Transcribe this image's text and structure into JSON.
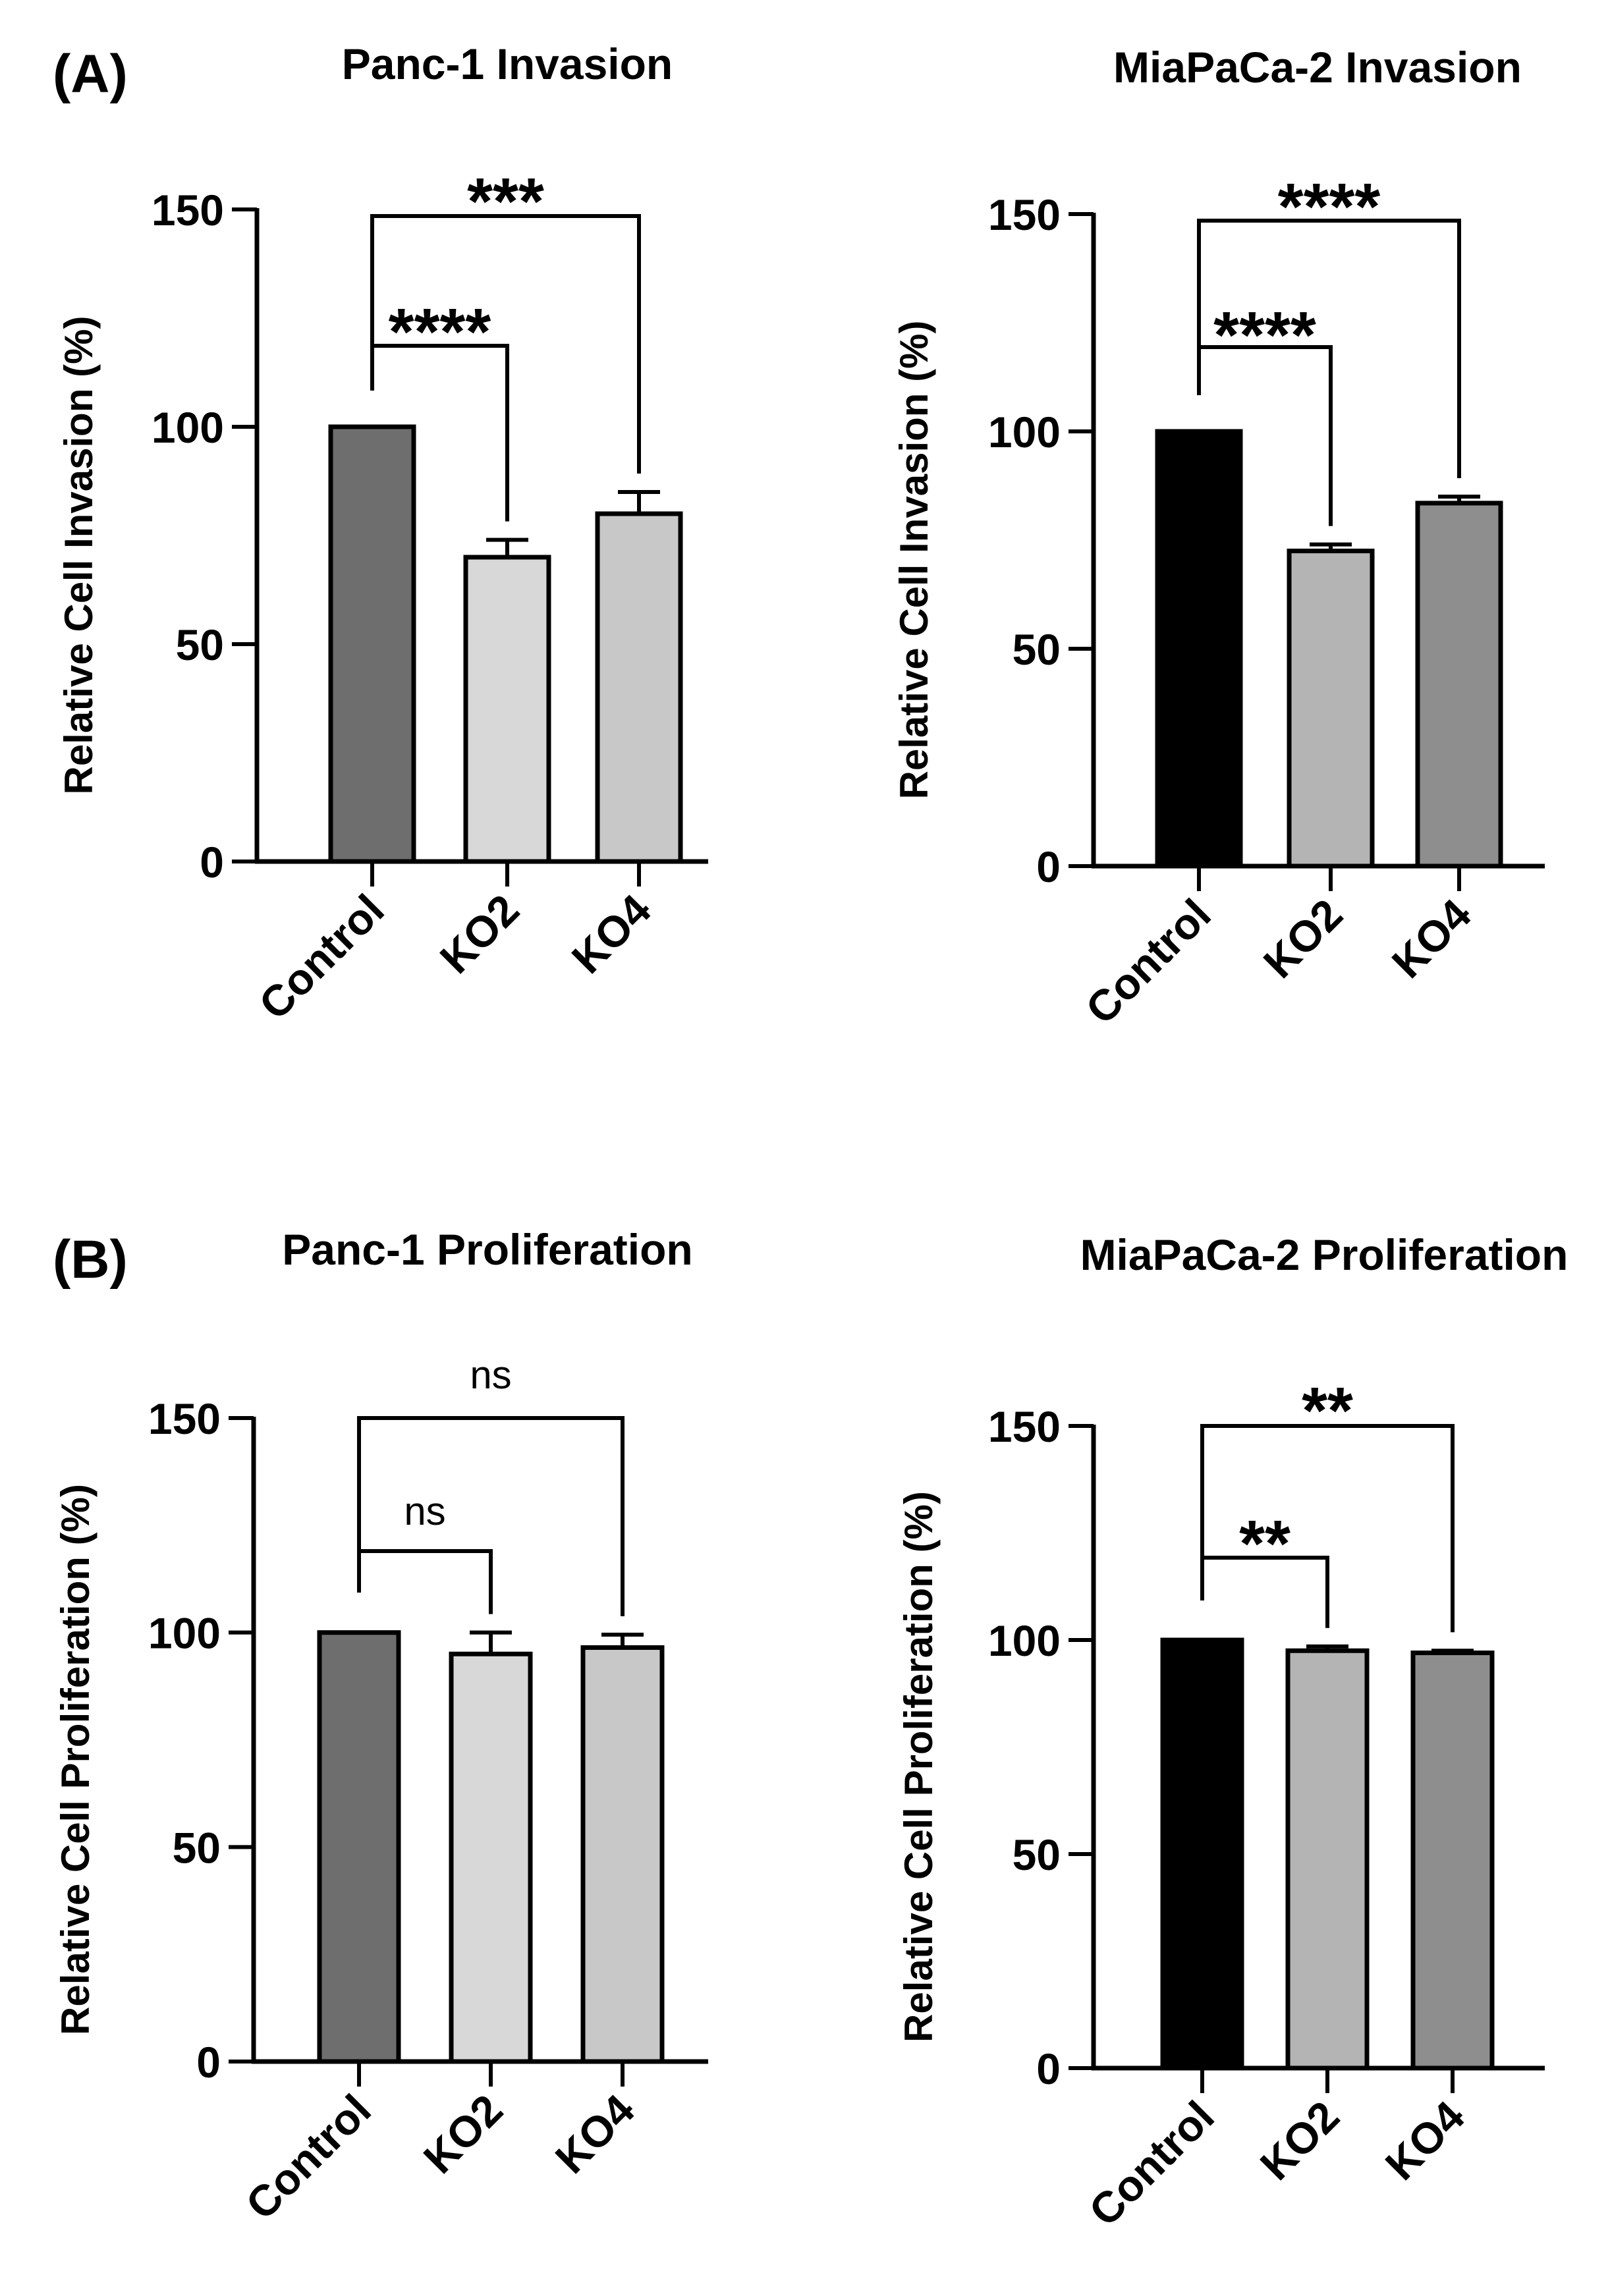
{
  "panel_labels": [
    "(A)",
    "(B)"
  ],
  "chart_data": [
    {
      "type": "bar",
      "title": "Panc-1 Invasion",
      "xlabel": "",
      "ylabel": "Relative Cell Invasion (%)",
      "ylim": [
        0,
        150
      ],
      "yticks": [
        0,
        50,
        100,
        150
      ],
      "categories": [
        "Control",
        "KO2",
        "KO4"
      ],
      "values": [
        100,
        70,
        80
      ],
      "errors": [
        0,
        4,
        5
      ],
      "bar_colors": [
        "#6e6e6e",
        "#d8d8d8",
        "#c8c8c8"
      ],
      "significance": [
        {
          "from": "Control",
          "to": "KO2",
          "label": "****"
        },
        {
          "from": "Control",
          "to": "KO4",
          "label": "***"
        }
      ]
    },
    {
      "type": "bar",
      "title": "MiaPaCa-2 Invasion",
      "xlabel": "",
      "ylabel": "Relative Cell Invasion (%)",
      "ylim": [
        0,
        150
      ],
      "yticks": [
        0,
        50,
        100,
        150
      ],
      "categories": [
        "Control",
        "KO2",
        "KO4"
      ],
      "values": [
        100,
        72.5,
        83.5
      ],
      "errors": [
        0,
        1.5,
        1.5
      ],
      "bar_colors": [
        "#000000",
        "#b4b4b4",
        "#8e8e8e"
      ],
      "significance": [
        {
          "from": "Control",
          "to": "KO2",
          "label": "****"
        },
        {
          "from": "Control",
          "to": "KO4",
          "label": "****"
        }
      ]
    },
    {
      "type": "bar",
      "title": "Panc-1 Proliferation",
      "xlabel": "",
      "ylabel": "Relative Cell Proliferation (%)",
      "ylim": [
        0,
        150
      ],
      "yticks": [
        0,
        50,
        100,
        150
      ],
      "categories": [
        "Control",
        "KO2",
        "KO4"
      ],
      "values": [
        100,
        95,
        96.5
      ],
      "errors": [
        0,
        5,
        3
      ],
      "bar_colors": [
        "#6e6e6e",
        "#d8d8d8",
        "#c8c8c8"
      ],
      "significance": [
        {
          "from": "Control",
          "to": "KO2",
          "label": "ns"
        },
        {
          "from": "Control",
          "to": "KO4",
          "label": "ns"
        }
      ]
    },
    {
      "type": "bar",
      "title": "MiaPaCa-2 Proliferation",
      "xlabel": "",
      "ylabel": "Relative Cell Proliferation (%)",
      "ylim": [
        0,
        150
      ],
      "yticks": [
        0,
        50,
        100,
        150
      ],
      "categories": [
        "Control",
        "KO2",
        "KO4"
      ],
      "values": [
        100,
        97.5,
        97
      ],
      "errors": [
        0,
        1,
        0.5
      ],
      "bar_colors": [
        "#000000",
        "#b4b4b4",
        "#8e8e8e"
      ],
      "significance": [
        {
          "from": "Control",
          "to": "KO2",
          "label": "**"
        },
        {
          "from": "Control",
          "to": "KO4",
          "label": "**"
        }
      ]
    }
  ]
}
